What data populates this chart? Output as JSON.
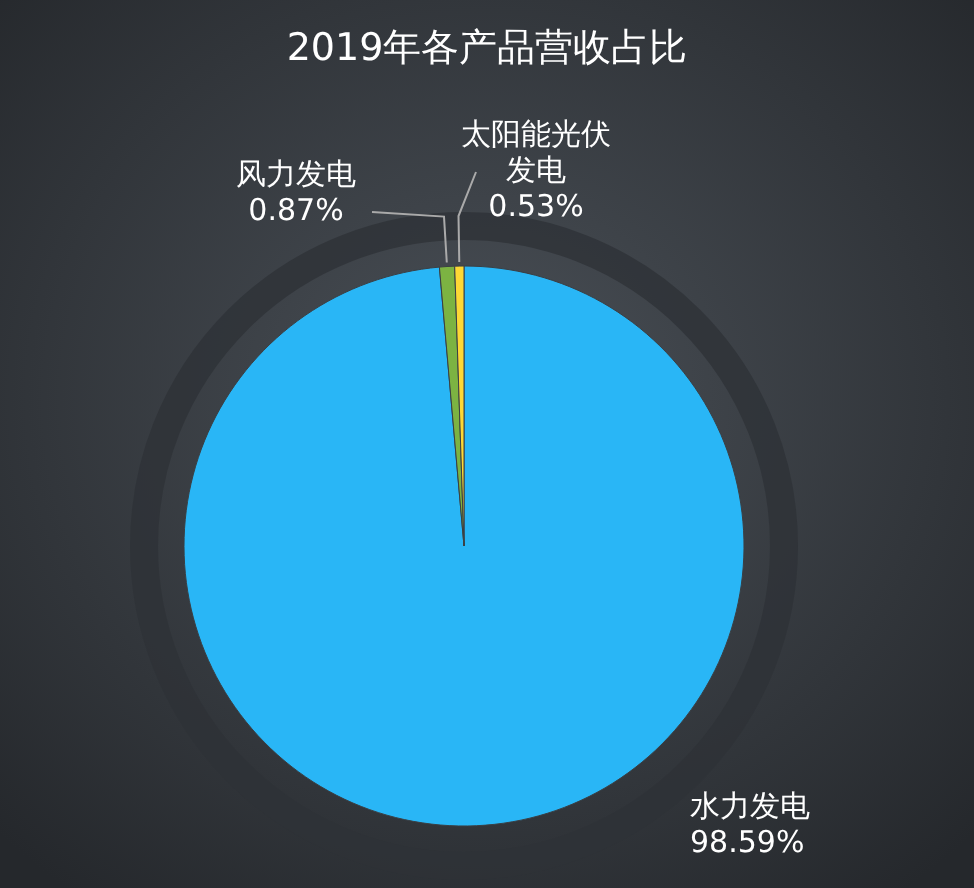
{
  "chart_data": {
    "type": "pie",
    "title": "2019年各产品营收占比",
    "categories": [
      "水力发电",
      "风力发电",
      "太阳能光伏发电"
    ],
    "values": [
      98.59,
      0.87,
      0.53
    ],
    "colors": [
      "#29b6f6",
      "#7cb342",
      "#fdd835"
    ],
    "value_labels": [
      "98.59%",
      "0.87%",
      "0.53%"
    ]
  }
}
